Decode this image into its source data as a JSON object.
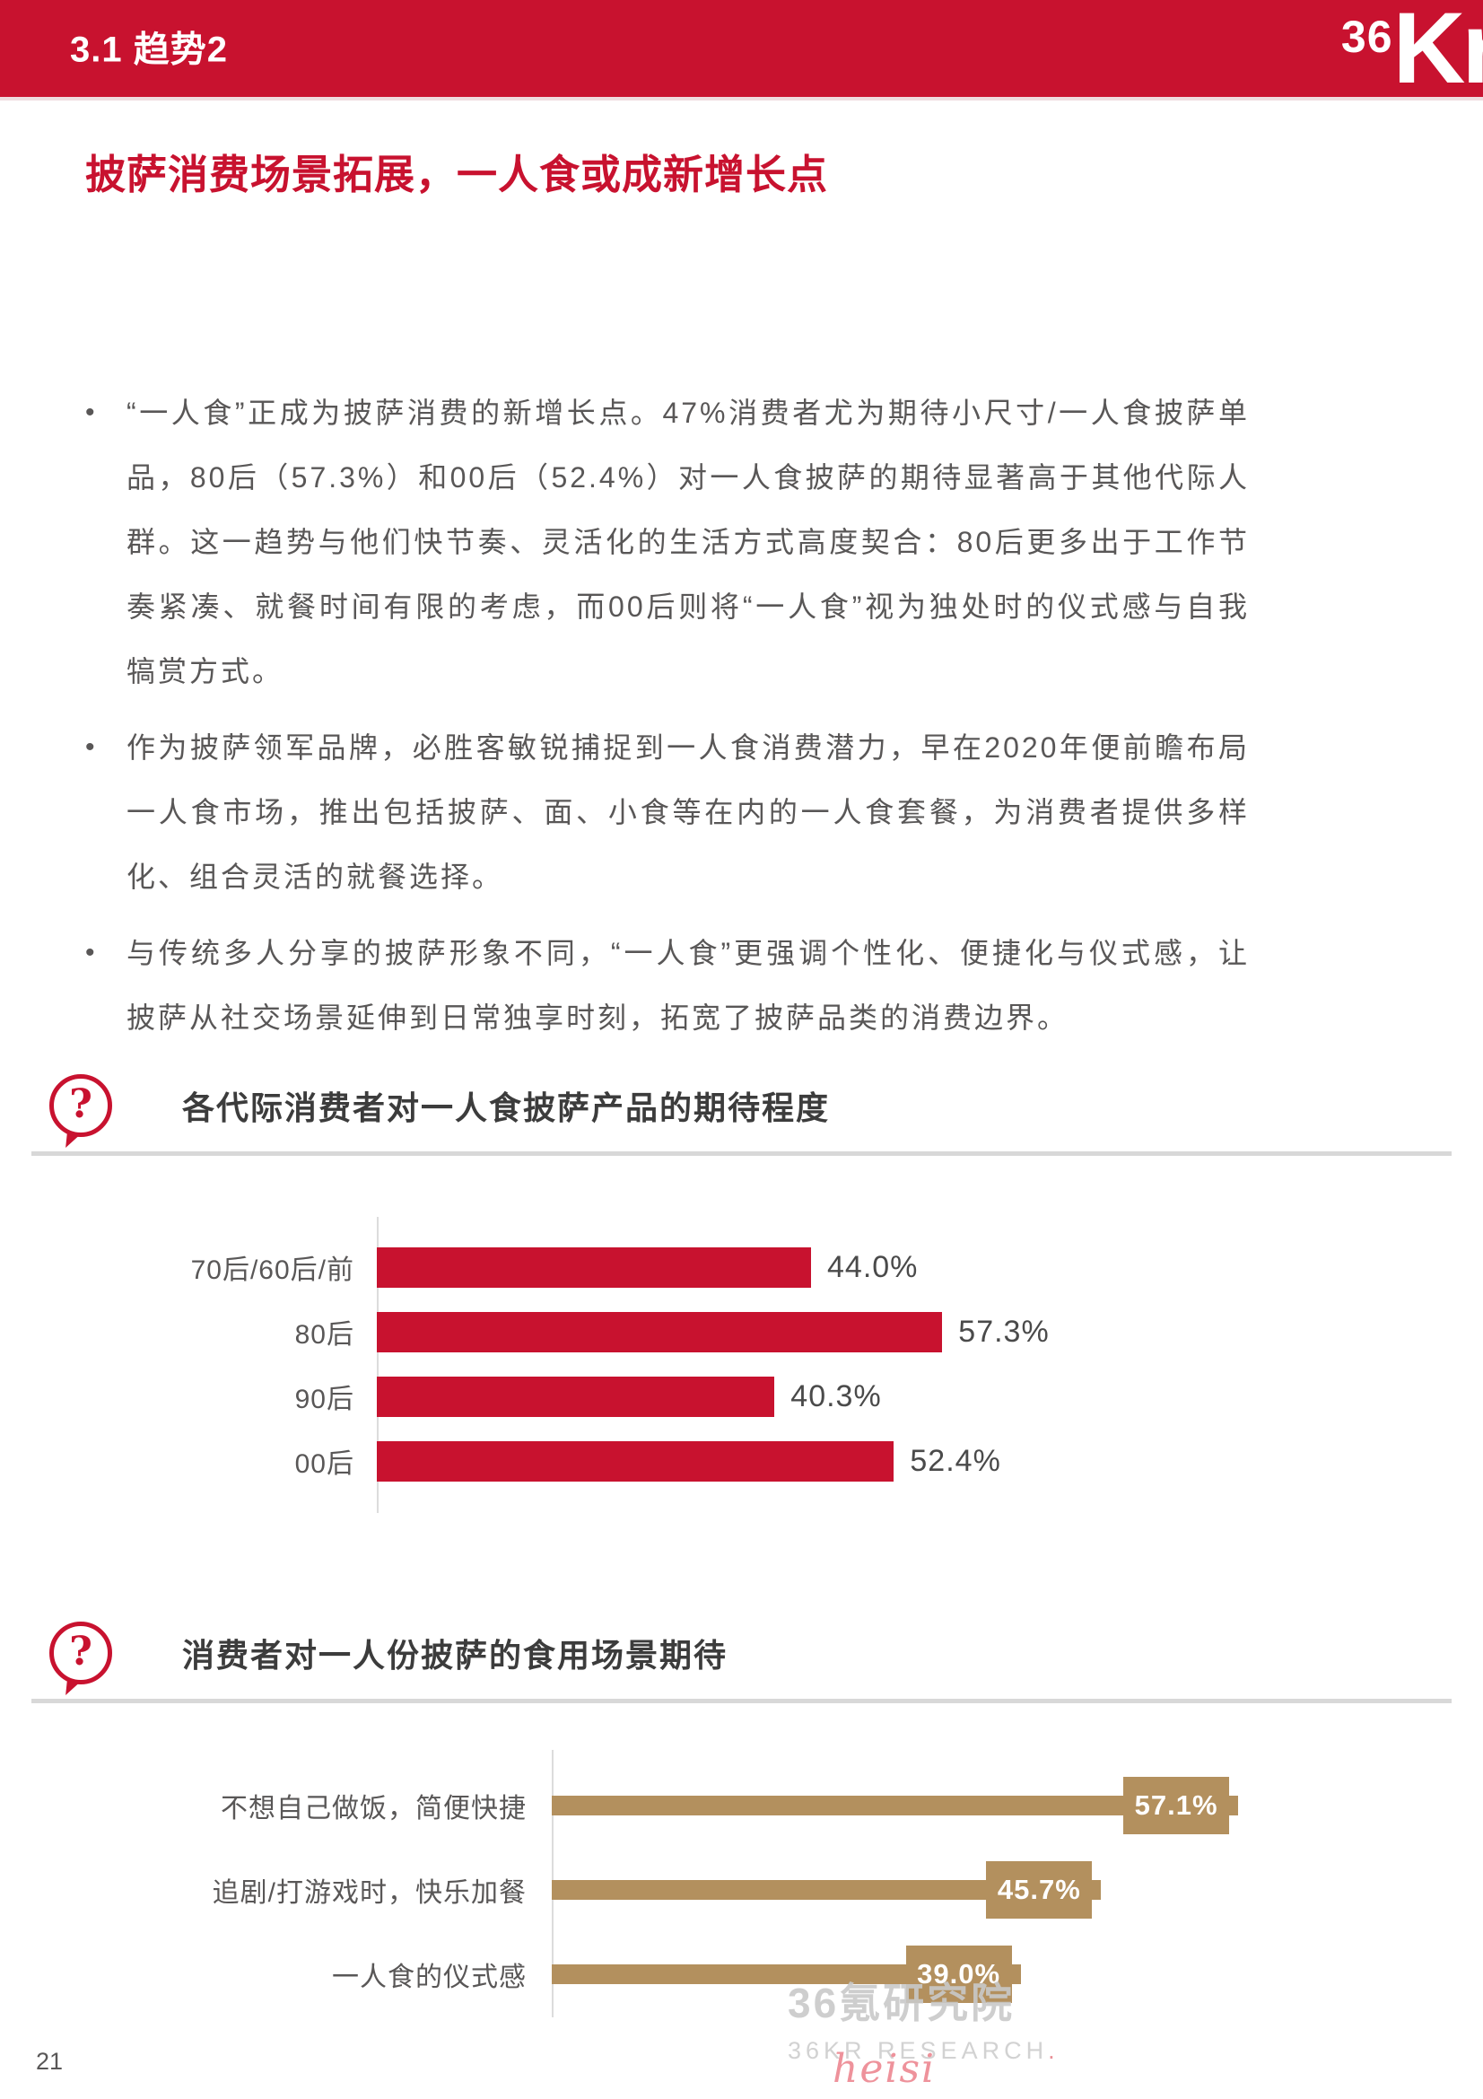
{
  "header": {
    "section_label": "3.1 趋势2",
    "logo": {
      "n36": "36",
      "kr": "Kr"
    }
  },
  "page": {
    "title": "披萨消费场景拓展，一人食或成新增长点",
    "page_number": "21"
  },
  "bullets": [
    {
      "marker": "•",
      "text": "“一人食”正成为披萨消费的新增长点。47%消费者尤为期待小尺寸/一人食披萨单品，80后（57.3%）和00后（52.4%）对一人食披萨的期待显著高于其他代际人群。这一趋势与他们快节奏、灵活化的生活方式高度契合：80后更多出于工作节奏紧凑、就餐时间有限的考虑，而00后则将“一人食”视为独处时的仪式感与自我犒赏方式。"
    },
    {
      "marker": "•",
      "text": "作为披萨领军品牌，必胜客敏锐捕捉到一人食消费潜力，早在2020年便前瞻布局一人食市场，推出包括披萨、面、小食等在内的一人食套餐，为消费者提供多样化、组合灵活的就餐选择。"
    },
    {
      "marker": "•",
      "text": "与传统多人分享的披萨形象不同，“一人食”更强调个性化、便捷化与仪式感，让披萨从社交场景延伸到日常独享时刻，拓宽了披萨品类的消费边界。"
    }
  ],
  "icons": {
    "question_mark": "?"
  },
  "sections": [
    {
      "heading": "各代际消费者对一人食披萨产品的期待程度"
    },
    {
      "heading": "消费者对一人份披萨的食用场景期待"
    }
  ],
  "chart_data": [
    {
      "type": "bar",
      "orientation": "horizontal",
      "title": "各代际消费者对一人食披萨产品的期待程度",
      "categories": [
        "70后/60后/前",
        "80后",
        "90后",
        "00后"
      ],
      "values": [
        44.0,
        57.3,
        40.3,
        52.4
      ],
      "value_labels": [
        "44.0%",
        "57.3%",
        "40.3%",
        "52.4%"
      ],
      "unit": "%",
      "bar_color": "#C8122F",
      "value_label_position": "outside-right",
      "axis_line": true,
      "grid": false,
      "xlim": [
        0,
        110
      ]
    },
    {
      "type": "bar",
      "orientation": "horizontal",
      "title": "消费者对一人份披萨的食用场景期待",
      "categories": [
        "不想自己做饭，简便快捷",
        "追剧/打游戏时，快乐加餐",
        "一人食的仪式感"
      ],
      "values": [
        57.1,
        45.7,
        39.0
      ],
      "value_labels": [
        "57.1%",
        "45.7%",
        "39.0%"
      ],
      "unit": "%",
      "bar_color": "#B3905E",
      "value_label_position": "tag-box-on-bar-end",
      "axis_line": true,
      "grid": false,
      "xlim": [
        0,
        90
      ]
    }
  ],
  "watermark": {
    "cn": "36氪研究院",
    "en": "36KR RESEARCH",
    "dot": ".",
    "script": "heisi"
  },
  "colors": {
    "brand_red": "#C8122F",
    "tan_gold": "#B3905E",
    "body_text_gray": "#595757",
    "heading_gray": "#3C3C3C",
    "value_label_gray": "#4A4A4A",
    "divider_gray": "#D8D8D8",
    "axis_gray": "#DCDCDC",
    "watermark_gray": "#C9C9C9",
    "watermark_pink": "#EE929B",
    "header_underline": "#EFDCDF",
    "white": "#FFFFFF"
  }
}
